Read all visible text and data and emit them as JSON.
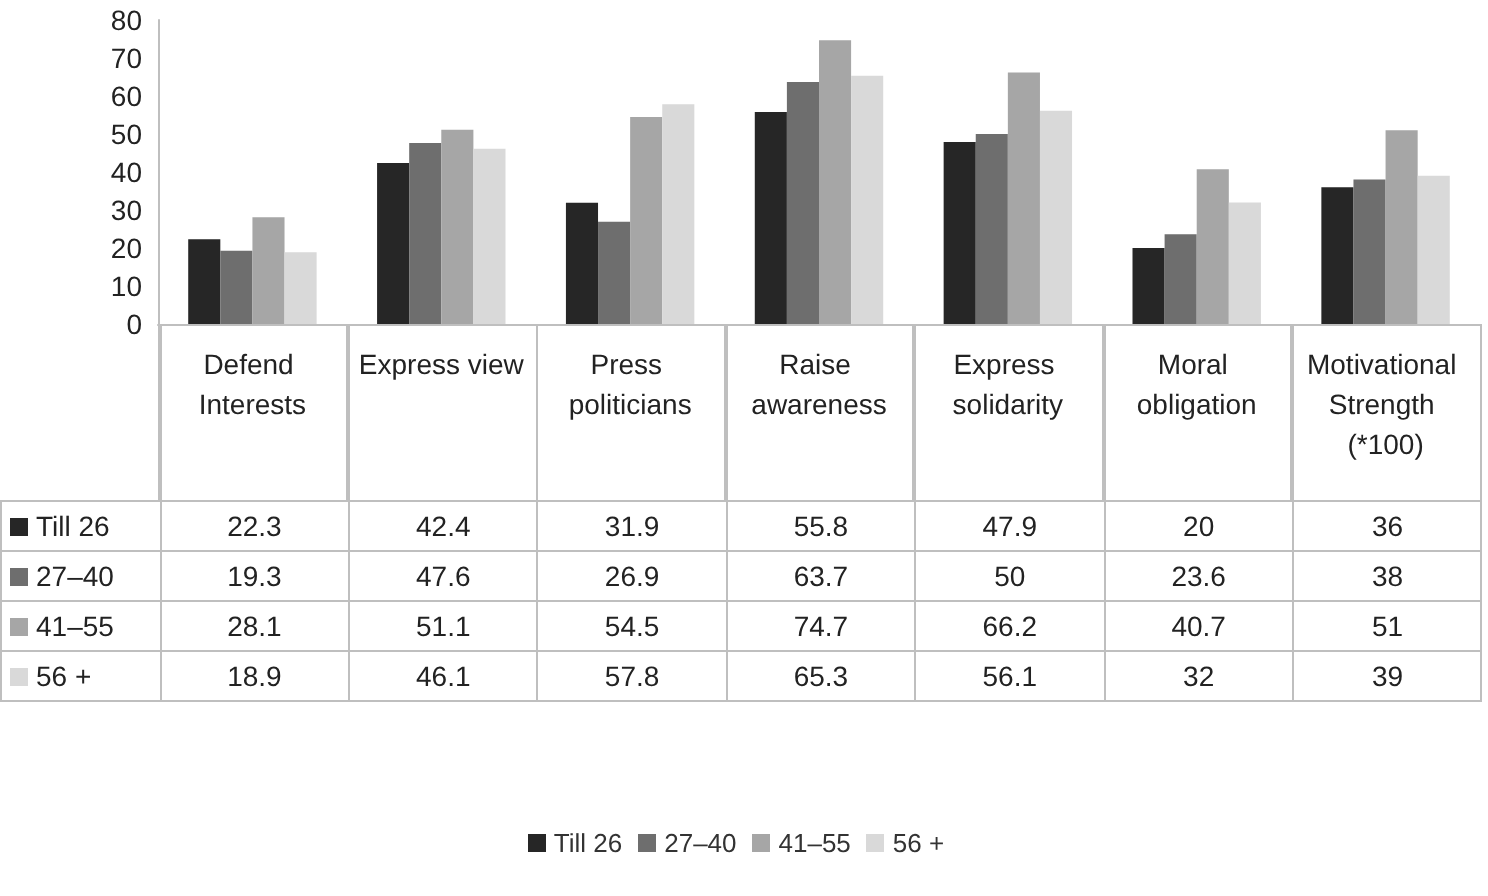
{
  "chart_data": {
    "type": "bar",
    "categories": [
      "Defend Interests",
      "Express view",
      "Press politicians",
      "Raise awareness",
      "Express solidarity",
      "Moral obligation",
      "Motivational Strength (*100)"
    ],
    "series": [
      {
        "name": "Till 26",
        "color": "#262626",
        "values": [
          22.3,
          42.4,
          31.9,
          55.8,
          47.9,
          20,
          36
        ]
      },
      {
        "name": "27–40",
        "color": "#6e6e6e",
        "values": [
          19.3,
          47.6,
          26.9,
          63.7,
          50,
          23.6,
          38
        ]
      },
      {
        "name": "41–55",
        "color": "#a6a6a6",
        "values": [
          28.1,
          51.1,
          54.5,
          74.7,
          66.2,
          40.7,
          51
        ]
      },
      {
        "name": "56 +",
        "color": "#d9d9d9",
        "values": [
          18.9,
          46.1,
          57.8,
          65.3,
          56.1,
          32,
          39
        ]
      }
    ],
    "ylim": [
      0,
      80
    ],
    "yticks": [
      0,
      10,
      20,
      30,
      40,
      50,
      60,
      70,
      80
    ],
    "grid": false,
    "legend": "bottom",
    "data_labels": true
  }
}
